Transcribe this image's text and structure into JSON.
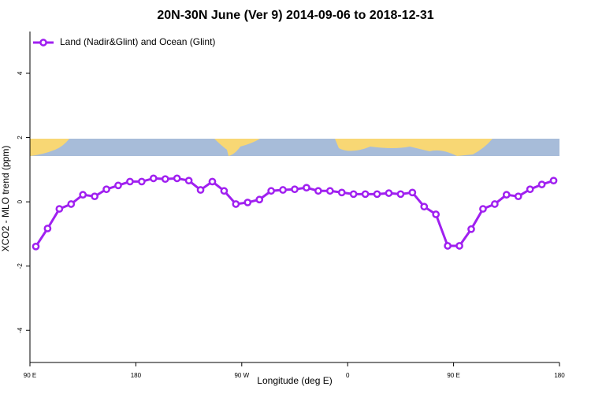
{
  "chart_data": {
    "type": "line",
    "title": "20N-30N June (Ver 9)   2014-09-06 to 2018-12-31",
    "x_label": "Longitude (deg E)",
    "y_label": "XCO2 - MLO trend (ppm)",
    "x": [
      95,
      105,
      115,
      125,
      135,
      145,
      155,
      165,
      175,
      185,
      195,
      205,
      215,
      225,
      235,
      245,
      255,
      265,
      275,
      285,
      295,
      305,
      315,
      325,
      335,
      345,
      355,
      365,
      375,
      385,
      395,
      405,
      415,
      425,
      435,
      445,
      455,
      465,
      475,
      485,
      495,
      505,
      515,
      525,
      535
    ],
    "series": [
      {
        "name": "Land (Nadir&Glint) and Ocean (Glint)",
        "color": "#a020f0",
        "values": [
          -1.39,
          -0.83,
          -0.22,
          -0.07,
          0.22,
          0.17,
          0.39,
          0.51,
          0.63,
          0.63,
          0.73,
          0.71,
          0.73,
          0.66,
          0.37,
          0.63,
          0.34,
          -0.07,
          -0.02,
          0.07,
          0.34,
          0.37,
          0.39,
          0.44,
          0.34,
          0.34,
          0.29,
          0.24,
          0.24,
          0.24,
          0.27,
          0.24,
          0.29,
          -0.15,
          -0.39,
          -1.37,
          -1.37,
          -0.85,
          -0.22,
          -0.07,
          0.22,
          0.17,
          0.39,
          0.54,
          0.66
        ]
      }
    ],
    "xlim": [
      90,
      540
    ],
    "xticks": [
      {
        "value": 90,
        "label": "90 E"
      },
      180,
      {
        "value": 270,
        "label": "90 W"
      },
      {
        "value": 360,
        "label": "0"
      },
      {
        "value": 450,
        "label": "90 E"
      },
      {
        "value": 540,
        "label": "180"
      }
    ],
    "ylim": [
      -5,
      5.3
    ],
    "yticks": [
      -4,
      -2,
      0,
      2,
      4
    ],
    "legend": "top-left"
  }
}
